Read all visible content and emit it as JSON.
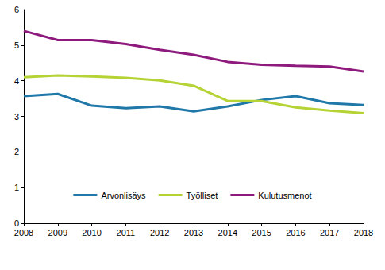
{
  "chart_data": {
    "type": "line",
    "categories": [
      "2008",
      "2009",
      "2010",
      "2011",
      "2012",
      "2013",
      "2014",
      "2015",
      "2016",
      "2017",
      "2018"
    ],
    "series": [
      {
        "name": "Arvonlisäys",
        "color": "#1f78a8",
        "values": [
          3.57,
          3.63,
          3.3,
          3.23,
          3.28,
          3.14,
          3.28,
          3.46,
          3.57,
          3.37,
          3.32
        ]
      },
      {
        "name": "Työlliset",
        "color": "#b5d334",
        "values": [
          4.1,
          4.15,
          4.12,
          4.08,
          4.01,
          3.86,
          3.43,
          3.43,
          3.25,
          3.16,
          3.09
        ]
      },
      {
        "name": "Kulutusmenot",
        "color": "#8e1a7d",
        "values": [
          5.4,
          5.14,
          5.14,
          5.03,
          4.87,
          4.73,
          4.53,
          4.45,
          4.42,
          4.4,
          4.26
        ]
      }
    ],
    "ylim": [
      0,
      6
    ],
    "yticks": [
      0,
      1,
      2,
      3,
      4,
      5,
      6
    ],
    "grid": false,
    "legend": "bottom"
  }
}
